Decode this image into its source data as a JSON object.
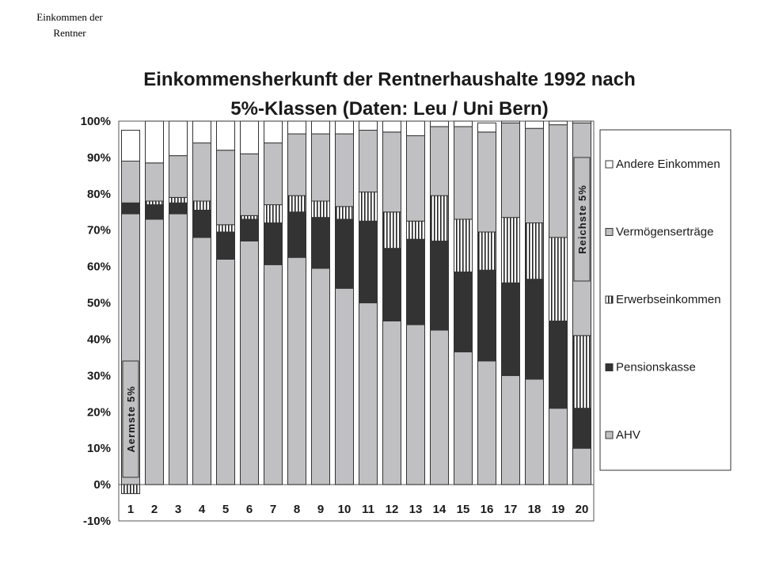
{
  "slide": {
    "caption_line1": "Einkommen der",
    "caption_line2": "Rentner"
  },
  "colors": {
    "ahv": "#c0bfc2",
    "pension": "#333333",
    "erwerb_bg": "#ffffff",
    "erwerb_stripe": "#222222",
    "verm": "#c0bfc2",
    "andere": "#ffffff",
    "outline": "#333333"
  },
  "chart_data": {
    "type": "bar",
    "stacked": true,
    "title": "Einkommensherkunft der Rentnerhaushalte 1992 nach",
    "subtitle": "5%-Klassen (Daten: Leu / Uni Bern)",
    "xlabel": "",
    "ylabel": "",
    "ylim": [
      -0.1,
      1.0
    ],
    "yticks": [
      "-10%",
      "0%",
      "10%",
      "20%",
      "30%",
      "40%",
      "50%",
      "60%",
      "70%",
      "80%",
      "90%",
      "100%"
    ],
    "categories": [
      "1",
      "2",
      "3",
      "4",
      "5",
      "6",
      "7",
      "8",
      "9",
      "10",
      "11",
      "12",
      "13",
      "14",
      "15",
      "16",
      "17",
      "18",
      "19",
      "20"
    ],
    "legend_position": "right",
    "series": [
      {
        "name": "AHV",
        "key": "ahv",
        "values": [
          0.745,
          0.73,
          0.745,
          0.68,
          0.62,
          0.67,
          0.605,
          0.625,
          0.595,
          0.54,
          0.5,
          0.45,
          0.44,
          0.425,
          0.365,
          0.34,
          0.3,
          0.29,
          0.21,
          0.1
        ]
      },
      {
        "name": "Pensionskasse",
        "key": "pension",
        "values": [
          0.03,
          0.04,
          0.03,
          0.075,
          0.075,
          0.06,
          0.115,
          0.125,
          0.14,
          0.19,
          0.225,
          0.2,
          0.235,
          0.245,
          0.22,
          0.25,
          0.255,
          0.275,
          0.24,
          0.11
        ]
      },
      {
        "name": "Erwerbseinkommen",
        "key": "erwerb",
        "values": [
          -0.025,
          0.01,
          0.015,
          0.025,
          0.02,
          0.01,
          0.05,
          0.045,
          0.045,
          0.035,
          0.08,
          0.1,
          0.05,
          0.125,
          0.145,
          0.105,
          0.18,
          0.155,
          0.23,
          0.2
        ]
      },
      {
        "name": "Vermögenserträge",
        "key": "verm",
        "values": [
          0.115,
          0.105,
          0.115,
          0.16,
          0.205,
          0.17,
          0.17,
          0.17,
          0.185,
          0.2,
          0.17,
          0.22,
          0.235,
          0.19,
          0.255,
          0.275,
          0.26,
          0.26,
          0.31,
          0.585
        ]
      },
      {
        "name": "Andere Einkommen",
        "key": "andere",
        "values": [
          0.085,
          0.115,
          0.095,
          0.06,
          0.08,
          0.09,
          0.06,
          0.035,
          0.035,
          0.035,
          0.025,
          0.03,
          0.04,
          0.015,
          0.015,
          0.025,
          0.005,
          0.02,
          0.01,
          0.005
        ]
      }
    ],
    "annotations": [
      {
        "text": "Aermste 5%",
        "category": "1",
        "range": [
          0.02,
          0.34
        ]
      },
      {
        "text": "Reichste 5%",
        "category": "20",
        "range": [
          0.56,
          0.9
        ]
      }
    ]
  }
}
